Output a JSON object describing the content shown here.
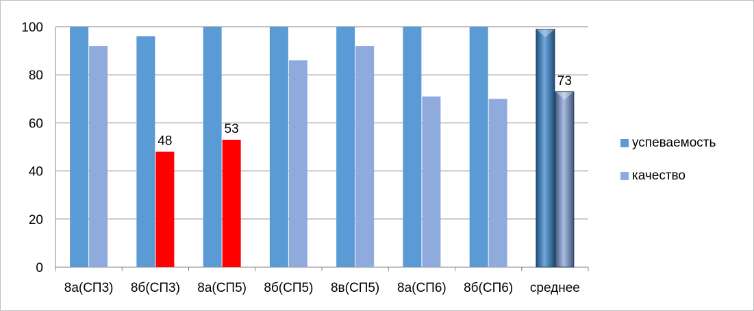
{
  "chart_data": {
    "type": "bar",
    "categories": [
      "8а(СП3)",
      "8б(СП3)",
      "8а(СП5)",
      "8б(СП5)",
      "8в(СП5)",
      "8а(СП6)",
      "8б(СП6)",
      "среднее"
    ],
    "series": [
      {
        "name": "успеваемость",
        "color": "#5b9bd5",
        "values": [
          100,
          96,
          100,
          100,
          100,
          100,
          100,
          99
        ]
      },
      {
        "name": "качество",
        "color": "#8faadc",
        "values": [
          92,
          48,
          53,
          86,
          92,
          71,
          70,
          73
        ]
      }
    ],
    "highlight_color": "#ff0000",
    "highlighted": [
      {
        "series": 1,
        "index": 1
      },
      {
        "series": 1,
        "index": 2
      }
    ],
    "data_labels": [
      {
        "series": 1,
        "index": 1,
        "text": "48"
      },
      {
        "series": 1,
        "index": 2,
        "text": "53"
      },
      {
        "series": 1,
        "index": 7,
        "text": "73"
      }
    ],
    "ylim": [
      0,
      100
    ],
    "yticks": [
      0,
      20,
      40,
      60,
      80,
      100
    ],
    "grid": true,
    "legend_position": "right",
    "title": "",
    "xlabel": "",
    "ylabel": ""
  }
}
